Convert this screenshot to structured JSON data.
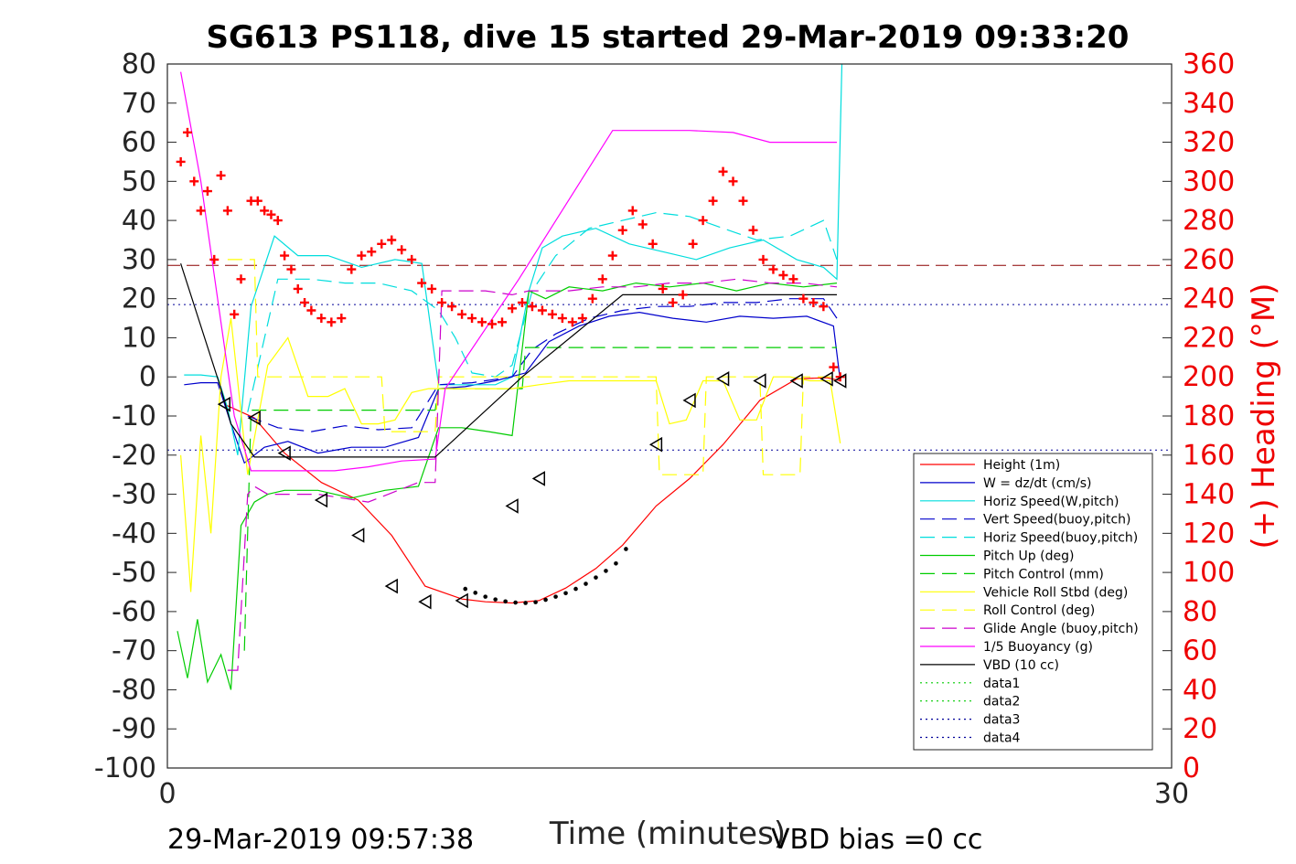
{
  "chart_data": {
    "type": "line",
    "title": "SG613 PS118, dive 15 started 29-Mar-2019 09:33:20",
    "xlabel": "Time (minutes)",
    "ylabel": "",
    "y2label": "(+) Heading (°M)",
    "xlim": [
      0,
      30
    ],
    "ylim": [
      -100,
      80
    ],
    "y2lim": [
      0,
      360
    ],
    "x_ticks": [
      "0",
      "30"
    ],
    "y_ticks": [
      "80",
      "70",
      "60",
      "50",
      "40",
      "30",
      "20",
      "10",
      "0",
      "-10",
      "-20",
      "-30",
      "-40",
      "-50",
      "-60",
      "-70",
      "-80",
      "-90",
      "-100"
    ],
    "y2_ticks": [
      "360",
      "340",
      "320",
      "300",
      "280",
      "260",
      "240",
      "220",
      "200",
      "180",
      "160",
      "140",
      "120",
      "100",
      "80",
      "60",
      "40",
      "20",
      "0"
    ],
    "footer_left": "29-Mar-2019 09:57:38",
    "footer_right": "VBD bias =0 cc",
    "grid": false,
    "legend_position": "bottom-right",
    "reference_lines": [
      {
        "y": 28.5,
        "color": "#8b0000",
        "style": "dashed"
      },
      {
        "y": 18.5,
        "color": "#000099",
        "style": "dotted"
      },
      {
        "y": -18.7,
        "color": "#000099",
        "style": "dotted"
      }
    ],
    "series": [
      {
        "name": "Height (1m)",
        "color": "#ff0000",
        "dash": "",
        "x": [
          1.7,
          2.6,
          3.5,
          4.6,
          5.7,
          6.7,
          7.7,
          8.8,
          9.5,
          10.3,
          11.1,
          11.9,
          12.8,
          13.6,
          14.6,
          15.6,
          16.6,
          17.7,
          18.8,
          19.7,
          20.1
        ],
        "y": [
          -7,
          -10.5,
          -19.5,
          -27,
          -31.5,
          -40.5,
          -53.5,
          -56.8,
          -57.5,
          -57.8,
          -57.2,
          -54,
          -49,
          -43,
          -33,
          -26,
          -17.3,
          -6,
          -0.5,
          -0.2,
          -1
        ]
      },
      {
        "name": "W = dz/dt (cm/s)",
        "color": "#0000cc",
        "dash": "",
        "x": [
          0.5,
          1.0,
          1.5,
          1.9,
          2.3,
          2.9,
          3.6,
          4.5,
          5.5,
          6.5,
          7.5,
          8.1,
          8.9,
          9.8,
          10.7,
          11.4,
          12.3,
          13.2,
          14.1,
          15.1,
          16.1,
          17.1,
          18.1,
          19.1,
          19.9,
          20.1
        ],
        "y": [
          -2,
          -1.5,
          -1.5,
          -12,
          -22,
          -18,
          -16.5,
          -19.5,
          -18,
          -18,
          -15.5,
          -3,
          -2.5,
          -1,
          1,
          9,
          13,
          15.5,
          16.5,
          15,
          14,
          15.5,
          15,
          15.5,
          13,
          -1
        ]
      },
      {
        "name": "Horiz Speed(W,pitch)",
        "color": "#00dddd",
        "dash": "",
        "x": [
          0.5,
          1.0,
          1.5,
          1.8,
          2.1,
          2.5,
          3.2,
          3.9,
          4.8,
          5.8,
          6.8,
          7.6,
          8.1,
          8.9,
          9.8,
          10.3,
          10.8,
          11.2,
          11.8,
          12.8,
          13.8,
          14.8,
          15.8,
          16.8,
          17.8,
          18.8,
          19.6,
          20.0,
          20.15
        ],
        "y": [
          0.5,
          0.5,
          0,
          -8,
          -20,
          18,
          36,
          31,
          31,
          28,
          30,
          29,
          -2,
          -2,
          -2,
          0,
          22,
          33,
          36,
          38,
          34,
          32,
          30,
          33,
          35,
          30,
          28,
          25,
          80
        ]
      },
      {
        "name": "Vert Speed(buoy,pitch)",
        "color": "#0000cc",
        "dash": "16,8",
        "x": [
          2.4,
          3.3,
          4.3,
          5.3,
          6.3,
          7.3,
          8.1,
          9.1,
          10.3,
          10.9,
          11.6,
          12.6,
          13.6,
          14.6,
          15.6,
          16.6,
          17.6,
          18.6,
          19.6,
          20.0
        ],
        "y": [
          -10,
          -13,
          -14,
          -12.5,
          -13.5,
          -13,
          -2,
          -1.5,
          0,
          7,
          11,
          15,
          17,
          18,
          18,
          19,
          19,
          20,
          20,
          15
        ]
      },
      {
        "name": "Horiz Speed(buoy,pitch)",
        "color": "#00dddd",
        "dash": "16,8",
        "x": [
          2.4,
          3.3,
          4.3,
          5.3,
          6.3,
          7.3,
          8.1,
          8.6,
          9.1,
          9.8,
          10.3,
          10.9,
          11.6,
          12.6,
          13.6,
          14.6,
          15.6,
          16.6,
          17.6,
          18.6,
          19.6,
          20.0
        ],
        "y": [
          -9,
          25,
          25,
          24,
          24,
          22,
          17,
          10,
          1,
          0,
          3,
          22,
          31,
          38,
          40,
          42,
          41,
          38,
          35,
          36,
          40,
          30
        ]
      },
      {
        "name": "Pitch Up (deg)",
        "color": "#00cc00",
        "dash": "",
        "x": [
          0.3,
          0.6,
          0.9,
          1.2,
          1.6,
          1.9,
          2.2,
          2.6,
          3.0,
          3.5,
          4.5,
          5.5,
          6.5,
          7.5,
          8.1,
          8.8,
          9.6,
          10.3,
          10.8,
          11.3,
          12.0,
          13.0,
          14.0,
          15.0,
          16.0,
          17.0,
          18.0,
          19.0,
          20.0
        ],
        "y": [
          -65,
          -77,
          -62,
          -78,
          -71,
          -80,
          -38,
          -32,
          -30,
          -29,
          -29,
          -31,
          -29,
          -28,
          -13,
          -13,
          -14,
          -15,
          22,
          20,
          23,
          22,
          24,
          23,
          24,
          22,
          24,
          23,
          24
        ]
      },
      {
        "name": "Pitch Control (mm)",
        "color": "#00cc00",
        "dash": "16,8",
        "x": [
          2.3,
          2.5,
          5.8,
          8.0,
          8.1,
          10.6,
          10.7,
          20.0
        ],
        "y": [
          -70,
          -8.5,
          -8.5,
          -8.5,
          -3,
          -3,
          7.5,
          7.5
        ]
      },
      {
        "name": "Vehicle Roll Stbd (deg)",
        "color": "#ffff00",
        "dash": "",
        "x": [
          0.4,
          0.7,
          1.0,
          1.3,
          1.6,
          1.9,
          2.4,
          3.0,
          3.6,
          4.2,
          4.8,
          5.3,
          5.8,
          6.3,
          6.8,
          7.3,
          7.8,
          8.3,
          8.9,
          9.6,
          10.3,
          11.1,
          12.0,
          13.0,
          14.0,
          14.6,
          15.0,
          15.5,
          16.0,
          16.6,
          17.1,
          17.6,
          18.1,
          18.6,
          19.2,
          19.8,
          20.1
        ],
        "y": [
          -20,
          -55,
          -15,
          -40,
          0,
          15,
          -25,
          3,
          10,
          -5,
          -5,
          -3,
          -12,
          -12,
          -11,
          -4,
          -3,
          -3,
          -3,
          -3,
          -3,
          -2,
          -1,
          -1,
          -1,
          -1,
          -12,
          -11,
          -1,
          -1,
          -11,
          -11,
          0,
          0,
          -1,
          -1,
          -17
        ]
      },
      {
        "name": "Roll Control (deg)",
        "color": "#ffff00",
        "dash": "16,8",
        "x": [
          1.8,
          2.6,
          2.7,
          6.4,
          6.5,
          8.0,
          8.1,
          14.6,
          14.7,
          16.0,
          16.1,
          17.7,
          17.8,
          18.9,
          19.0,
          20.0
        ],
        "y": [
          30,
          30,
          0,
          0,
          -14,
          -14,
          0,
          0,
          -25,
          -25,
          0,
          0,
          -25,
          -25,
          0,
          0
        ]
      },
      {
        "name": "Glide Angle (buoy,pitch)",
        "color": "#cc00cc",
        "dash": "16,8",
        "x": [
          1.8,
          2.1,
          2.4,
          2.6,
          3.0,
          4.5,
          6.0,
          7.5,
          8.0,
          8.2,
          9.5,
          10.3,
          10.8,
          12.0,
          13.0,
          14.0,
          15.0,
          16.0,
          17.0,
          18.0,
          19.0,
          20.0
        ],
        "y": [
          -75,
          -75,
          -30,
          -28,
          -30,
          -30,
          -32,
          -27,
          -27,
          22,
          22,
          21,
          22,
          22,
          23,
          23,
          24,
          24,
          25,
          24,
          24,
          23
        ]
      },
      {
        "name": "1/5 Buoyancy (g)",
        "color": "#ff00ff",
        "dash": "",
        "x": [
          0.4,
          1.0,
          2.0,
          2.5,
          4.0,
          5.0,
          6.0,
          7.0,
          8.0,
          8.3,
          10.5,
          13.3,
          13.6,
          15.6,
          16.9,
          18.0,
          20.0
        ],
        "y": [
          78,
          50,
          -10,
          -24,
          -24,
          -24,
          -23,
          -21.5,
          -21,
          -3,
          25,
          63,
          63,
          63,
          62.5,
          60,
          60
        ]
      },
      {
        "name": "VBD (10 cc)",
        "color": "#000000",
        "dash": "",
        "x": [
          0.4,
          1.6,
          1.9,
          2.6,
          8.0,
          10.6,
          13.6,
          20.0
        ],
        "y": [
          29,
          -3,
          -12,
          -20.5,
          -20.5,
          0,
          21,
          21
        ]
      },
      {
        "name": "data1",
        "color": "#00cc00",
        "dash": "2,4",
        "x": [],
        "y": []
      },
      {
        "name": "data2",
        "color": "#00cc00",
        "dash": "2,4",
        "x": [],
        "y": []
      },
      {
        "name": "data3",
        "color": "#000099",
        "dash": "2,4",
        "x": [],
        "y": []
      },
      {
        "name": "data4",
        "color": "#000099",
        "dash": "2,4",
        "x": [],
        "y": []
      }
    ],
    "heading_series": {
      "name": "Heading (°M)",
      "color": "#ff0000",
      "marker": "+",
      "x": [
        0.4,
        0.6,
        0.8,
        1.0,
        1.2,
        1.4,
        1.6,
        1.8,
        2.0,
        2.2,
        2.5,
        2.7,
        2.9,
        3.1,
        3.3,
        3.5,
        3.7,
        3.9,
        4.1,
        4.3,
        4.6,
        4.9,
        5.2,
        5.5,
        5.8,
        6.1,
        6.4,
        6.7,
        7.0,
        7.3,
        7.6,
        7.9,
        8.2,
        8.5,
        8.8,
        9.1,
        9.4,
        9.7,
        10.0,
        10.3,
        10.6,
        10.9,
        11.2,
        11.5,
        11.8,
        12.1,
        12.4,
        12.7,
        13.0,
        13.3,
        13.6,
        13.9,
        14.2,
        14.5,
        14.8,
        15.1,
        15.4,
        15.7,
        16.0,
        16.3,
        16.6,
        16.9,
        17.2,
        17.5,
        17.8,
        18.1,
        18.4,
        18.7,
        19.0,
        19.3,
        19.6,
        19.9,
        20.1
      ],
      "y": [
        310,
        325,
        300,
        285,
        295,
        260,
        303,
        285,
        232,
        250,
        290,
        290,
        285,
        283,
        280,
        262,
        255,
        245,
        238,
        234,
        230,
        228,
        230,
        255,
        262,
        264,
        268,
        270,
        265,
        260,
        248,
        245,
        238,
        236,
        232,
        230,
        228,
        227,
        228,
        235,
        238,
        236,
        234,
        232,
        230,
        228,
        230,
        240,
        250,
        262,
        275,
        285,
        278,
        268,
        245,
        238,
        242,
        268,
        280,
        290,
        305,
        300,
        290,
        275,
        260,
        255,
        252,
        250,
        240,
        238,
        236,
        205,
        200
      ]
    },
    "profile_markers": {
      "shape": "triangle",
      "x": [
        1.7,
        2.6,
        3.5,
        4.6,
        5.7,
        6.7,
        7.7,
        8.8,
        10.3,
        11.1,
        14.6,
        15.6,
        16.6,
        17.7,
        18.8,
        19.7,
        20.1
      ],
      "y": [
        -7,
        -10.5,
        -19.5,
        -31.5,
        -40.5,
        -53.5,
        -57.5,
        -57.2,
        -33,
        -26,
        -17.3,
        -6,
        -0.5,
        -1,
        -1,
        -0.5,
        -1
      ]
    },
    "dense_dots": {
      "x": [
        8.9,
        9.2,
        9.5,
        9.8,
        10.1,
        10.4,
        10.7,
        11.0,
        11.3,
        11.6,
        11.9,
        12.2,
        12.5,
        12.8,
        13.1,
        13.4,
        13.7
      ],
      "y": [
        -54.2,
        -55.2,
        -56.2,
        -56.9,
        -57.4,
        -57.7,
        -57.8,
        -57.6,
        -57.0,
        -56.2,
        -55.3,
        -54.2,
        -52.9,
        -51.3,
        -49.6,
        -47.7,
        -44
      ]
    }
  }
}
